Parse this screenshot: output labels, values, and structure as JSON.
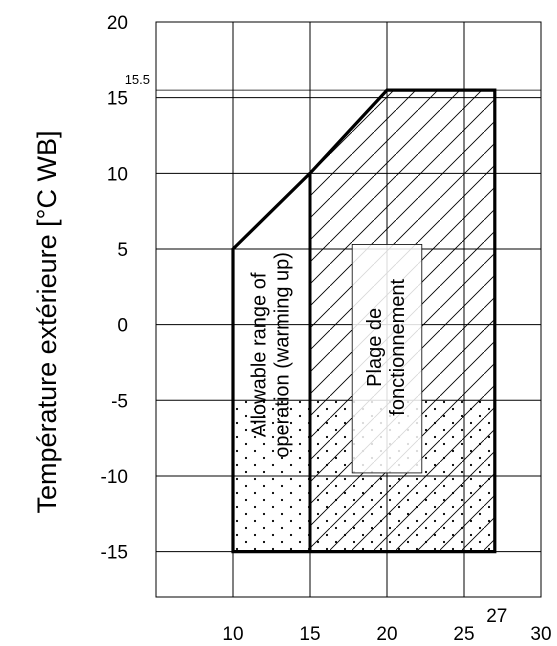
{
  "chart_data": {
    "type": "area",
    "ylabel": "Température extérieure [°C WB]",
    "xlabel": "",
    "xlim": [
      5,
      30
    ],
    "ylim": [
      -18,
      20
    ],
    "x_ticks": [
      10,
      15,
      20,
      25,
      30
    ],
    "y_ticks": [
      20,
      15,
      10,
      5,
      0,
      -5,
      -10,
      -15
    ],
    "x_extra_tick": {
      "value": 27,
      "label": "27"
    },
    "y_extra_tick": {
      "value": 15.5,
      "label": "15.5"
    },
    "grid": true,
    "envelope": [
      [
        10,
        -15
      ],
      [
        10,
        5
      ],
      [
        15,
        10
      ],
      [
        20,
        15.5
      ],
      [
        27,
        15.5
      ],
      [
        27,
        -15
      ]
    ],
    "regions": [
      {
        "label": "Allowable range of operation (warming up)",
        "x": [
          10,
          15
        ],
        "y": [
          -15,
          10
        ]
      },
      {
        "label": "Plage de fonctionnement",
        "x": [
          15,
          27
        ],
        "y": [
          -15,
          15.5
        ]
      }
    ]
  }
}
